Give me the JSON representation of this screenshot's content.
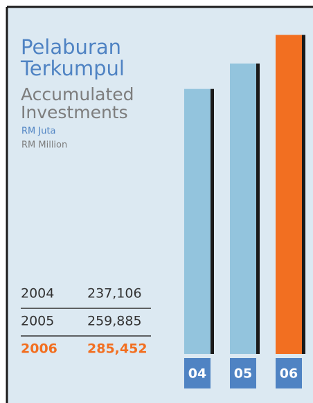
{
  "chart_data": {
    "type": "bar",
    "title_lines": [
      "Pelaburan",
      "Terkumpul"
    ],
    "subtitle_lines": [
      "Accumulated",
      "Investments"
    ],
    "unit_ms": "RM Juta",
    "unit_en": "RM Million",
    "categories": [
      "04",
      "05",
      "06"
    ],
    "years": [
      "2004",
      "2005",
      "2006"
    ],
    "values": [
      237106,
      259885,
      285452
    ],
    "value_labels": [
      "237,106",
      "259,885",
      "285,452"
    ],
    "colors": [
      "#93c4dd",
      "#93c4dd",
      "#f26f21"
    ],
    "ylim": [
      0,
      300000
    ]
  }
}
